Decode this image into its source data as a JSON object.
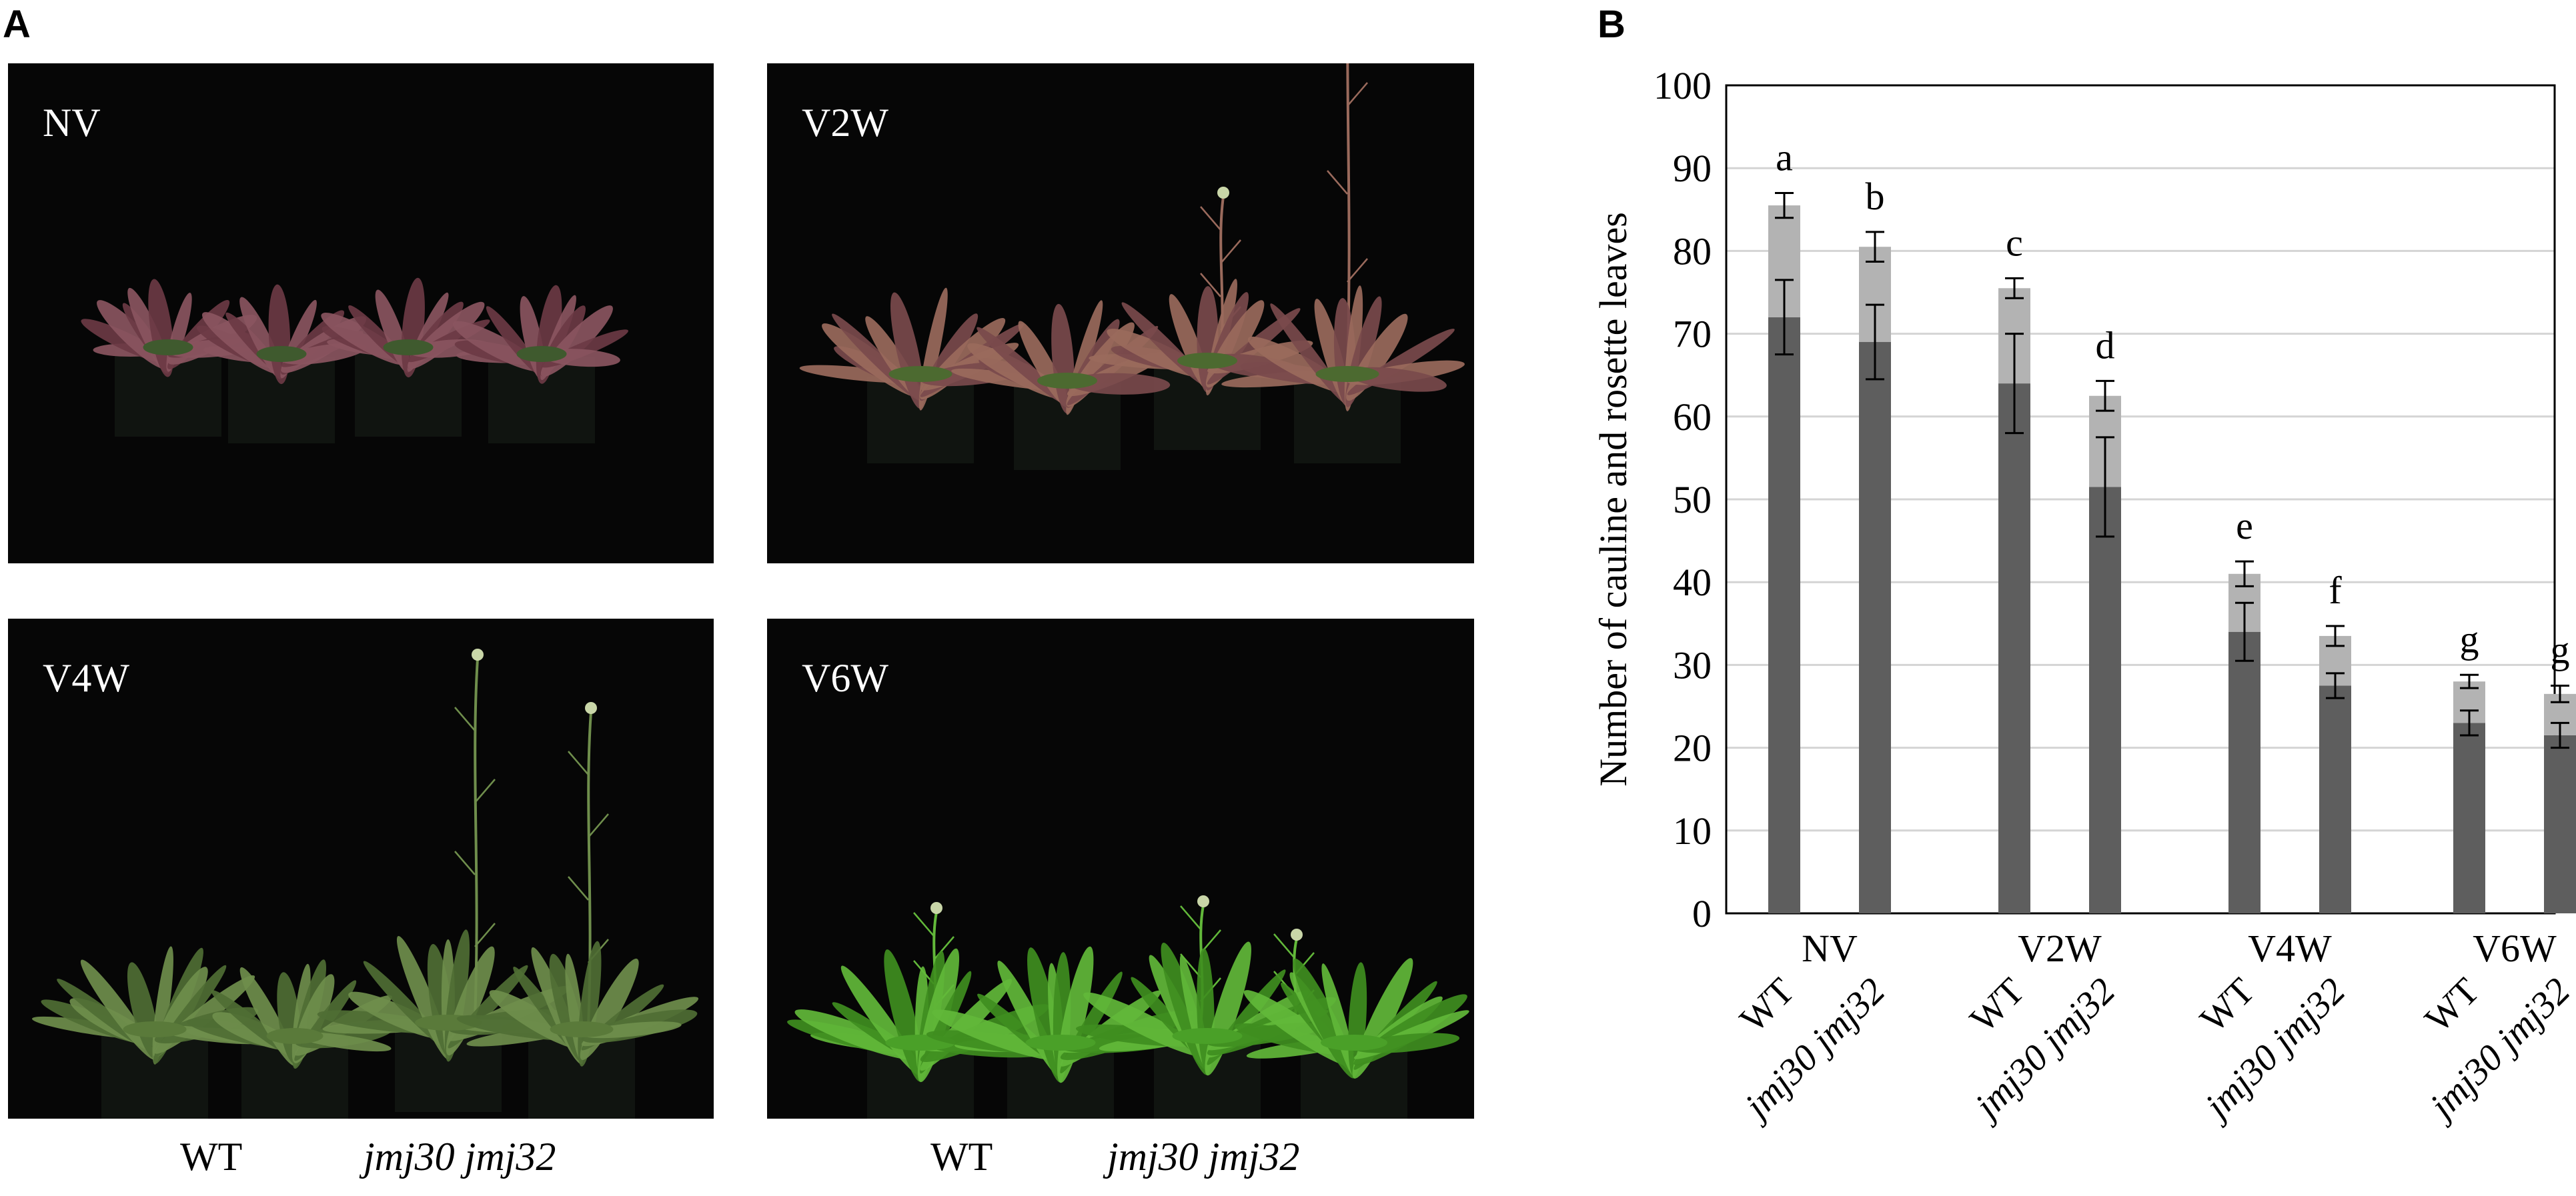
{
  "panel_a": {
    "letter": "A",
    "photos": [
      {
        "label": "NV",
        "stage": "vegetative"
      },
      {
        "label": "V2W",
        "stage": "early-bolt"
      },
      {
        "label": "V4W",
        "stage": "bolting"
      },
      {
        "label": "V6W",
        "stage": "bolting-green"
      }
    ],
    "genotype_labels": [
      "WT",
      "jmj30 jmj32",
      "WT",
      "jmj30 jmj32"
    ]
  },
  "panel_b": {
    "letter": "B"
  },
  "colors": {
    "rosette": "#5e5e5e",
    "cauline": "#b3b3b3",
    "photo_bg": "#060606"
  },
  "chart_data": {
    "type": "bar",
    "stacked": true,
    "ylabel": "Number of cauline and rosette leaves",
    "ylim": [
      0,
      100
    ],
    "yticks": [
      0,
      10,
      20,
      30,
      40,
      50,
      60,
      70,
      80,
      90,
      100
    ],
    "grid": true,
    "groups": [
      "NV",
      "V2W",
      "V4W",
      "V6W"
    ],
    "genotypes": [
      "WT",
      "jmj30 jmj32"
    ],
    "bars": [
      {
        "group": "NV",
        "genotype": "WT",
        "rosette": 72,
        "rosette_err": 4.5,
        "total": 85.5,
        "total_err": 1.5,
        "letter": "a"
      },
      {
        "group": "NV",
        "genotype": "jmj30 jmj32",
        "rosette": 69,
        "rosette_err": 4.5,
        "total": 80.5,
        "total_err": 1.8,
        "letter": "b"
      },
      {
        "group": "V2W",
        "genotype": "WT",
        "rosette": 64,
        "rosette_err": 6,
        "total": 75.5,
        "total_err": 1.2,
        "letter": "c"
      },
      {
        "group": "V2W",
        "genotype": "jmj30 jmj32",
        "rosette": 51.5,
        "rosette_err": 6,
        "total": 62.5,
        "total_err": 1.8,
        "letter": "d"
      },
      {
        "group": "V4W",
        "genotype": "WT",
        "rosette": 34,
        "rosette_err": 3.5,
        "total": 41,
        "total_err": 1.5,
        "letter": "e"
      },
      {
        "group": "V4W",
        "genotype": "jmj30 jmj32",
        "rosette": 27.5,
        "rosette_err": 1.5,
        "total": 33.5,
        "total_err": 1.2,
        "letter": "f"
      },
      {
        "group": "V6W",
        "genotype": "WT",
        "rosette": 23,
        "rosette_err": 1.5,
        "total": 28,
        "total_err": 0.8,
        "letter": "g"
      },
      {
        "group": "V6W",
        "genotype": "jmj30 jmj32",
        "rosette": 21.5,
        "rosette_err": 1.5,
        "total": 26.5,
        "total_err": 1.0,
        "letter": "g"
      }
    ]
  }
}
